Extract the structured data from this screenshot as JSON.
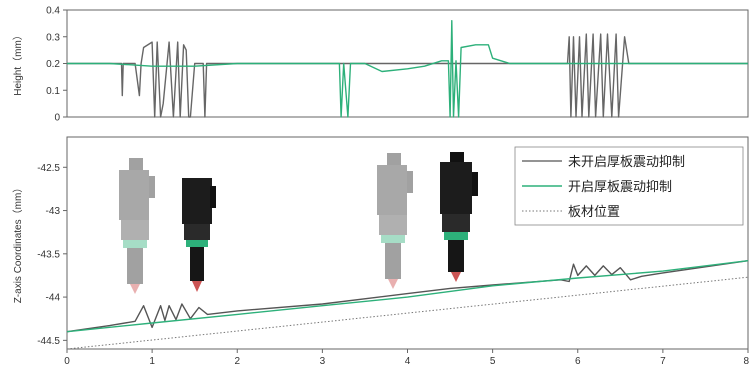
{
  "chart_data": [
    {
      "type": "line",
      "title": "",
      "xlabel": "",
      "ylabel": "Height（mm）",
      "xlim": [
        0,
        8
      ],
      "ylim": [
        0,
        0.4
      ],
      "yticks": [
        0,
        0.1,
        0.2,
        0.3,
        0.4
      ],
      "ytick_labels": [
        "0",
        "0.1",
        "0.2",
        "0.3",
        "0.4"
      ],
      "grid": false,
      "series": [
        {
          "name": "未开启厚板震动抑制",
          "color": "#666666",
          "points": [
            [
              0,
              0.2
            ],
            [
              0.3,
              0.2
            ],
            [
              0.6,
              0.2
            ],
            [
              0.64,
              0.2
            ],
            [
              0.65,
              0.08
            ],
            [
              0.66,
              0.2
            ],
            [
              0.7,
              0.2
            ],
            [
              0.8,
              0.2
            ],
            [
              0.85,
              0.08
            ],
            [
              0.87,
              0.2
            ],
            [
              0.9,
              0.26
            ],
            [
              1.0,
              0.28
            ],
            [
              1.03,
              0.0
            ],
            [
              1.06,
              0.28
            ],
            [
              1.1,
              0.0
            ],
            [
              1.13,
              0.05
            ],
            [
              1.2,
              0.28
            ],
            [
              1.25,
              0.0
            ],
            [
              1.3,
              0.28
            ],
            [
              1.33,
              0.0
            ],
            [
              1.37,
              0.27
            ],
            [
              1.4,
              0.25
            ],
            [
              1.43,
              0.0
            ],
            [
              1.45,
              0.0
            ],
            [
              1.5,
              0.2
            ],
            [
              1.6,
              0.2
            ],
            [
              1.62,
              0.0
            ],
            [
              1.64,
              0.2
            ],
            [
              1.8,
              0.2
            ],
            [
              2.5,
              0.2
            ],
            [
              3.0,
              0.2
            ],
            [
              3.2,
              0.2
            ],
            [
              3.5,
              0.2
            ],
            [
              4.0,
              0.2
            ],
            [
              4.5,
              0.2
            ],
            [
              5.0,
              0.2
            ],
            [
              5.5,
              0.2
            ],
            [
              5.88,
              0.2
            ],
            [
              5.9,
              0.3
            ],
            [
              5.92,
              0.0
            ],
            [
              5.95,
              0.3
            ],
            [
              5.98,
              0.0
            ],
            [
              6.02,
              0.3
            ],
            [
              6.05,
              0.0
            ],
            [
              6.1,
              0.31
            ],
            [
              6.13,
              0.0
            ],
            [
              6.18,
              0.31
            ],
            [
              6.21,
              0.0
            ],
            [
              6.27,
              0.31
            ],
            [
              6.3,
              0.0
            ],
            [
              6.35,
              0.31
            ],
            [
              6.4,
              0.0
            ],
            [
              6.45,
              0.31
            ],
            [
              6.48,
              0.0
            ],
            [
              6.55,
              0.3
            ],
            [
              6.6,
              0.2
            ],
            [
              7.0,
              0.2
            ],
            [
              7.5,
              0.2
            ],
            [
              8.0,
              0.2
            ]
          ]
        },
        {
          "name": "开启厚板震动抑制",
          "color": "#2db07a",
          "points": [
            [
              0,
              0.2
            ],
            [
              0.5,
              0.2
            ],
            [
              1.0,
              0.19
            ],
            [
              1.5,
              0.19
            ],
            [
              2.0,
              0.2
            ],
            [
              2.5,
              0.2
            ],
            [
              3.0,
              0.2
            ],
            [
              3.2,
              0.2
            ],
            [
              3.22,
              0.0
            ],
            [
              3.25,
              0.2
            ],
            [
              3.3,
              0.0
            ],
            [
              3.33,
              0.2
            ],
            [
              3.5,
              0.2
            ],
            [
              3.7,
              0.17
            ],
            [
              4.0,
              0.18
            ],
            [
              4.2,
              0.19
            ],
            [
              4.4,
              0.21
            ],
            [
              4.48,
              0.21
            ],
            [
              4.5,
              0.0
            ],
            [
              4.52,
              0.36
            ],
            [
              4.54,
              0.0
            ],
            [
              4.57,
              0.21
            ],
            [
              4.6,
              0.0
            ],
            [
              4.63,
              0.26
            ],
            [
              4.8,
              0.27
            ],
            [
              4.95,
              0.27
            ],
            [
              5.0,
              0.22
            ],
            [
              5.2,
              0.2
            ],
            [
              5.5,
              0.2
            ],
            [
              6.0,
              0.2
            ],
            [
              7.0,
              0.2
            ],
            [
              8.0,
              0.2
            ]
          ]
        }
      ]
    },
    {
      "type": "line",
      "title": "",
      "xlabel": "",
      "ylabel": "Z-axis Coordinates（mm）",
      "xlim": [
        0,
        8
      ],
      "ylim": [
        -44.6,
        -42.15
      ],
      "xticks": [
        0,
        1,
        2,
        3,
        4,
        5,
        6,
        7,
        8
      ],
      "xtick_labels": [
        "0",
        "1",
        "2",
        "3",
        "4",
        "5",
        "6",
        "7",
        "8"
      ],
      "yticks": [
        -42.5,
        -43,
        -43.5,
        -44,
        -44.5
      ],
      "ytick_labels": [
        "-42.5",
        "-43",
        "-43.5",
        "-44",
        "-44.5"
      ],
      "grid": false,
      "legend_position": "top-right",
      "series": [
        {
          "name": "未开启厚板震动抑制",
          "color": "#555555",
          "dash": "solid",
          "points": [
            [
              0,
              -44.4
            ],
            [
              0.5,
              -44.33
            ],
            [
              0.8,
              -44.28
            ],
            [
              0.9,
              -44.1
            ],
            [
              1.0,
              -44.35
            ],
            [
              1.1,
              -44.1
            ],
            [
              1.15,
              -44.27
            ],
            [
              1.2,
              -44.1
            ],
            [
              1.28,
              -44.26
            ],
            [
              1.35,
              -44.08
            ],
            [
              1.45,
              -44.25
            ],
            [
              1.55,
              -44.12
            ],
            [
              1.65,
              -44.2
            ],
            [
              2.0,
              -44.16
            ],
            [
              3.0,
              -44.08
            ],
            [
              4.0,
              -43.96
            ],
            [
              4.5,
              -43.9
            ],
            [
              5.0,
              -43.86
            ],
            [
              5.8,
              -43.8
            ],
            [
              5.9,
              -43.82
            ],
            [
              5.95,
              -43.62
            ],
            [
              6.0,
              -43.75
            ],
            [
              6.1,
              -43.64
            ],
            [
              6.2,
              -43.75
            ],
            [
              6.3,
              -43.64
            ],
            [
              6.4,
              -43.74
            ],
            [
              6.5,
              -43.66
            ],
            [
              6.62,
              -43.8
            ],
            [
              6.75,
              -43.76
            ],
            [
              7.0,
              -43.72
            ],
            [
              8.0,
              -43.58
            ]
          ]
        },
        {
          "name": "开启厚板震动抑制",
          "color": "#2db07a",
          "dash": "solid",
          "points": [
            [
              0,
              -44.4
            ],
            [
              1.0,
              -44.3
            ],
            [
              2.0,
              -44.2
            ],
            [
              3.0,
              -44.1
            ],
            [
              4.0,
              -44.0
            ],
            [
              5.0,
              -43.87
            ],
            [
              6.0,
              -43.78
            ],
            [
              7.0,
              -43.7
            ],
            [
              8.0,
              -43.58
            ]
          ]
        },
        {
          "name": "板材位置",
          "color": "#777777",
          "dash": "dotted",
          "points": [
            [
              0,
              -44.6
            ],
            [
              8.0,
              -43.77
            ]
          ]
        }
      ]
    }
  ]
}
